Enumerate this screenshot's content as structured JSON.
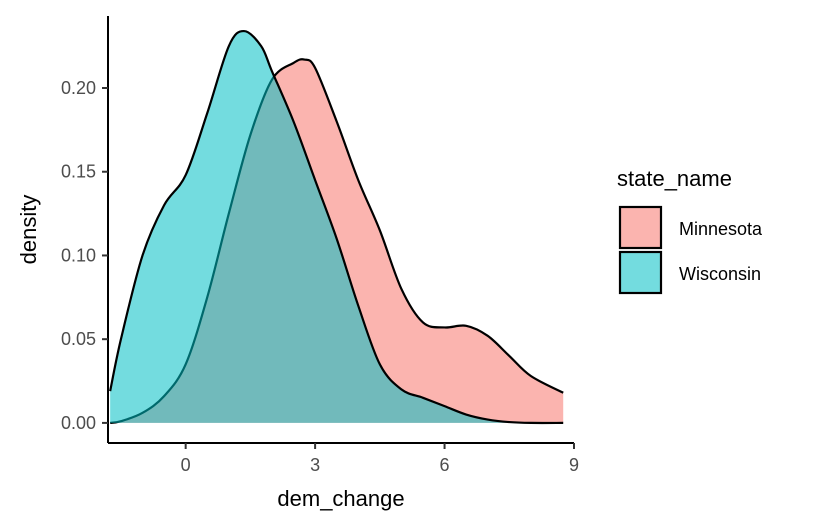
{
  "chart_data": {
    "type": "area",
    "chart_kind": "density",
    "xlabel": "dem_change",
    "ylabel": "density",
    "xlim": [
      -1.8,
      9.0
    ],
    "ylim": [
      -0.012,
      0.243
    ],
    "xticks": [
      0,
      3,
      6,
      9
    ],
    "yticks": [
      0.0,
      0.05,
      0.1,
      0.15,
      0.2
    ],
    "ytick_labels": [
      "0.00",
      "0.05",
      "0.10",
      "0.15",
      "0.20"
    ],
    "grid": false,
    "legend": {
      "title": "state_name",
      "placement": "right"
    },
    "series": [
      {
        "name": "Minnesota",
        "color": "#F8766D",
        "x": [
          -1.75,
          -1.5,
          -1.0,
          -0.5,
          0.0,
          0.5,
          1.0,
          1.5,
          2.0,
          2.5,
          2.75,
          3.0,
          3.5,
          4.0,
          4.5,
          5.0,
          5.5,
          6.0,
          6.5,
          7.0,
          7.5,
          8.0,
          8.75
        ],
        "y": [
          0.0,
          0.001,
          0.006,
          0.016,
          0.035,
          0.075,
          0.125,
          0.172,
          0.205,
          0.215,
          0.217,
          0.212,
          0.18,
          0.145,
          0.115,
          0.08,
          0.06,
          0.057,
          0.058,
          0.052,
          0.04,
          0.028,
          0.018
        ]
      },
      {
        "name": "Wisconsin",
        "color": "#00BFC4",
        "x": [
          -1.75,
          -1.5,
          -1.0,
          -0.5,
          0.0,
          0.5,
          1.0,
          1.35,
          1.75,
          2.0,
          2.5,
          3.0,
          3.5,
          4.0,
          4.5,
          5.0,
          5.5,
          6.0,
          6.5,
          7.0,
          7.5,
          8.0,
          8.75
        ],
        "y": [
          0.019,
          0.05,
          0.1,
          0.13,
          0.148,
          0.185,
          0.225,
          0.234,
          0.225,
          0.21,
          0.18,
          0.145,
          0.11,
          0.07,
          0.035,
          0.02,
          0.015,
          0.01,
          0.005,
          0.002,
          0.0005,
          0.0,
          0.0
        ]
      }
    ]
  }
}
